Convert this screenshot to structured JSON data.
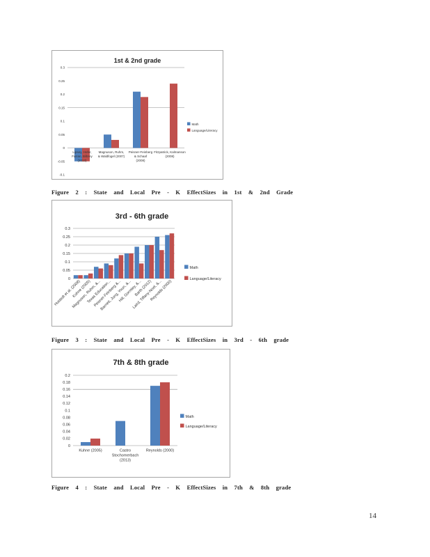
{
  "colors": {
    "math": "#4f81bd",
    "literacy": "#c0504d",
    "grid": "#8c8c8c",
    "axis_text": "#333333"
  },
  "page_number": "14",
  "figures": [
    {
      "caption": "Figure 2 : State and Local Pre - K EffectSizes in 1st & 2nd Grade",
      "chart_data": {
        "type": "bar",
        "title": "1st & 2nd grade",
        "categories": [
          "Lipsey, Hofer, Farran, Bilbrey (2013)",
          "Magnuson, Ruhm, & Waldfogel (2007)",
          "Peisner-Feinberg & Schaaf (2008)",
          "Fitzpatrick, Kalmanson (2008)"
        ],
        "category_label_lines": [
          [
            "Lipsey, Hofer,",
            "Farran, Bilbrey",
            "(2013)"
          ],
          [
            "Magnuson, Ruhm,",
            "& Waldfogel (2007)"
          ],
          [
            "Peisner-Feinberg",
            "& Schaaf",
            "(2008)"
          ],
          [
            "Fitzpatrick, Kalmanson",
            "(2008)"
          ]
        ],
        "series": [
          {
            "name": "Math",
            "values": [
              -0.05,
              0.05,
              0.21,
              null
            ]
          },
          {
            "name": "Language/Literacy",
            "values": [
              -0.05,
              0.03,
              0.19,
              0.24
            ]
          }
        ],
        "yticks": [
          "0.3",
          "0.25",
          "0.2",
          "0.15",
          "0.1",
          "0.05",
          "0",
          "-0.05",
          "-0.1"
        ],
        "ylim": [
          -0.1,
          0.3
        ],
        "grid_values": [
          0.3,
          0.15,
          0
        ],
        "legend": "right"
      }
    },
    {
      "caption": "Figure 3 : State and Local Pre - K EffectSizes in 3rd - 6th grade",
      "chart_data": {
        "type": "bar",
        "title": "3rd - 6th grade",
        "categories": [
          "Hustedt et al. (2008)",
          "Kuhne (2005)",
          "Magnuson, Ruhm, &...",
          "Texas Education...",
          "Peisner-Feinberg &...",
          "Barnett, Jung, Youn, &...",
          "Hill, Gormley, &...",
          "Barth (2012)",
          "Laird, Tiffany-Noel, &...",
          "Reynolds (2000)"
        ],
        "series": [
          {
            "name": "Math",
            "values": [
              0.02,
              0.02,
              0.07,
              0.09,
              0.12,
              0.15,
              0.19,
              0.2,
              0.25,
              0.26
            ]
          },
          {
            "name": "Language/Literacy",
            "values": [
              0.02,
              0.03,
              0.06,
              0.08,
              0.14,
              0.15,
              0.09,
              0.2,
              0.17,
              0.27
            ]
          }
        ],
        "yticks": [
          "0.3",
          "0.25",
          "0.2",
          "0.15",
          "0.1",
          "0.05",
          "0"
        ],
        "ylim": [
          0,
          0.3
        ],
        "grid_values": [
          0,
          0.05,
          0.1,
          0.15,
          0.2,
          0.25,
          0.3
        ],
        "legend": "right"
      }
    },
    {
      "caption": "Figure 4 : State and Local Pre - K EffectSizes in 7th & 8th grade",
      "chart_data": {
        "type": "bar",
        "title": "7th & 8th grade",
        "categories": [
          "Kuhne (2005)",
          "Castro Stochomerbach (2013)",
          "Reynolds (2000)"
        ],
        "category_label_lines": [
          [
            "Kuhne (2005)"
          ],
          [
            "Castro",
            "Stochomerbach",
            "(2013)"
          ],
          [
            "Reynolds (2000)"
          ]
        ],
        "series": [
          {
            "name": "Math",
            "values": [
              0.01,
              0.07,
              0.17
            ]
          },
          {
            "name": "Language/Literacy",
            "values": [
              0.02,
              null,
              0.18
            ]
          }
        ],
        "yticks": [
          "0.2",
          "0.18",
          "0.16",
          "0.14",
          "0.12",
          "0.1",
          "0.08",
          "0.06",
          "0.04",
          "0.02",
          "0"
        ],
        "ylim": [
          0,
          0.2
        ],
        "grid_values": [
          0,
          0.16,
          0.2
        ],
        "legend": "right"
      }
    }
  ]
}
